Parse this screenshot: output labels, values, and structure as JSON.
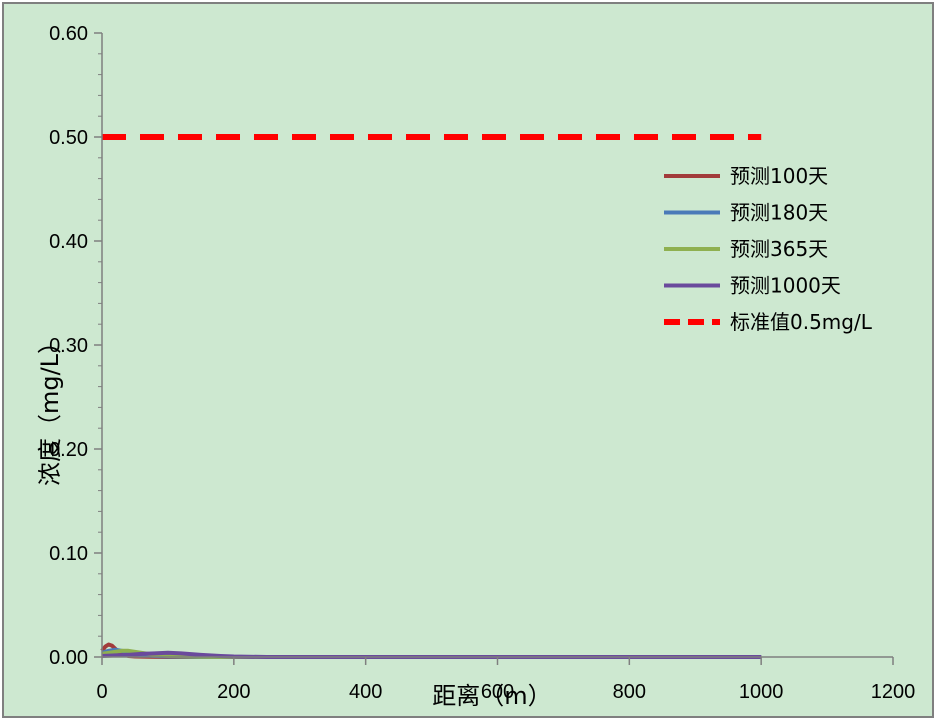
{
  "chart_data": {
    "type": "line",
    "title": "",
    "xlabel": "距离（m）",
    "ylabel": "浓度（mg/L）",
    "xlim": [
      0,
      1200
    ],
    "ylim": [
      0,
      0.6
    ],
    "x_ticks": [
      "0",
      "200",
      "400",
      "600",
      "800",
      "1000",
      "1200"
    ],
    "y_ticks": [
      "0.00",
      "0.10",
      "0.20",
      "0.30",
      "0.40",
      "0.50",
      "0.60"
    ],
    "grid": false,
    "legend_position": "right",
    "series": [
      {
        "name": "预测100天",
        "color": "#a23b3b",
        "dashed": false,
        "x": [
          0,
          5,
          10,
          15,
          20,
          25,
          30,
          40,
          50,
          70,
          100,
          150,
          200,
          1000
        ],
        "y": [
          0.006,
          0.01,
          0.012,
          0.011,
          0.008,
          0.005,
          0.003,
          0.001,
          0.0005,
          0.0002,
          0,
          0,
          0,
          0
        ]
      },
      {
        "name": "预测180天",
        "color": "#4a7ab8",
        "dashed": false,
        "x": [
          0,
          10,
          20,
          30,
          40,
          50,
          60,
          80,
          100,
          150,
          200,
          1000
        ],
        "y": [
          0.004,
          0.006,
          0.007,
          0.006,
          0.004,
          0.003,
          0.002,
          0.001,
          0.0005,
          0,
          0,
          0
        ]
      },
      {
        "name": "预测365天",
        "color": "#8fb050",
        "dashed": false,
        "x": [
          0,
          10,
          20,
          30,
          40,
          50,
          60,
          80,
          100,
          150,
          200,
          1000
        ],
        "y": [
          0.003,
          0.004,
          0.005,
          0.006,
          0.006,
          0.005,
          0.004,
          0.002,
          0.001,
          0.0002,
          0,
          0
        ]
      },
      {
        "name": "预测1000天",
        "color": "#6a4a9c",
        "dashed": false,
        "x": [
          0,
          20,
          40,
          60,
          80,
          100,
          120,
          150,
          180,
          200,
          250,
          1000
        ],
        "y": [
          0.001,
          0.0015,
          0.002,
          0.003,
          0.0035,
          0.004,
          0.0035,
          0.002,
          0.001,
          0.0005,
          0,
          0
        ]
      },
      {
        "name": "标准值0.5mg/L",
        "color": "#ff0000",
        "dashed": true,
        "x": [
          0,
          1000
        ],
        "y": [
          0.5,
          0.5
        ]
      }
    ]
  }
}
